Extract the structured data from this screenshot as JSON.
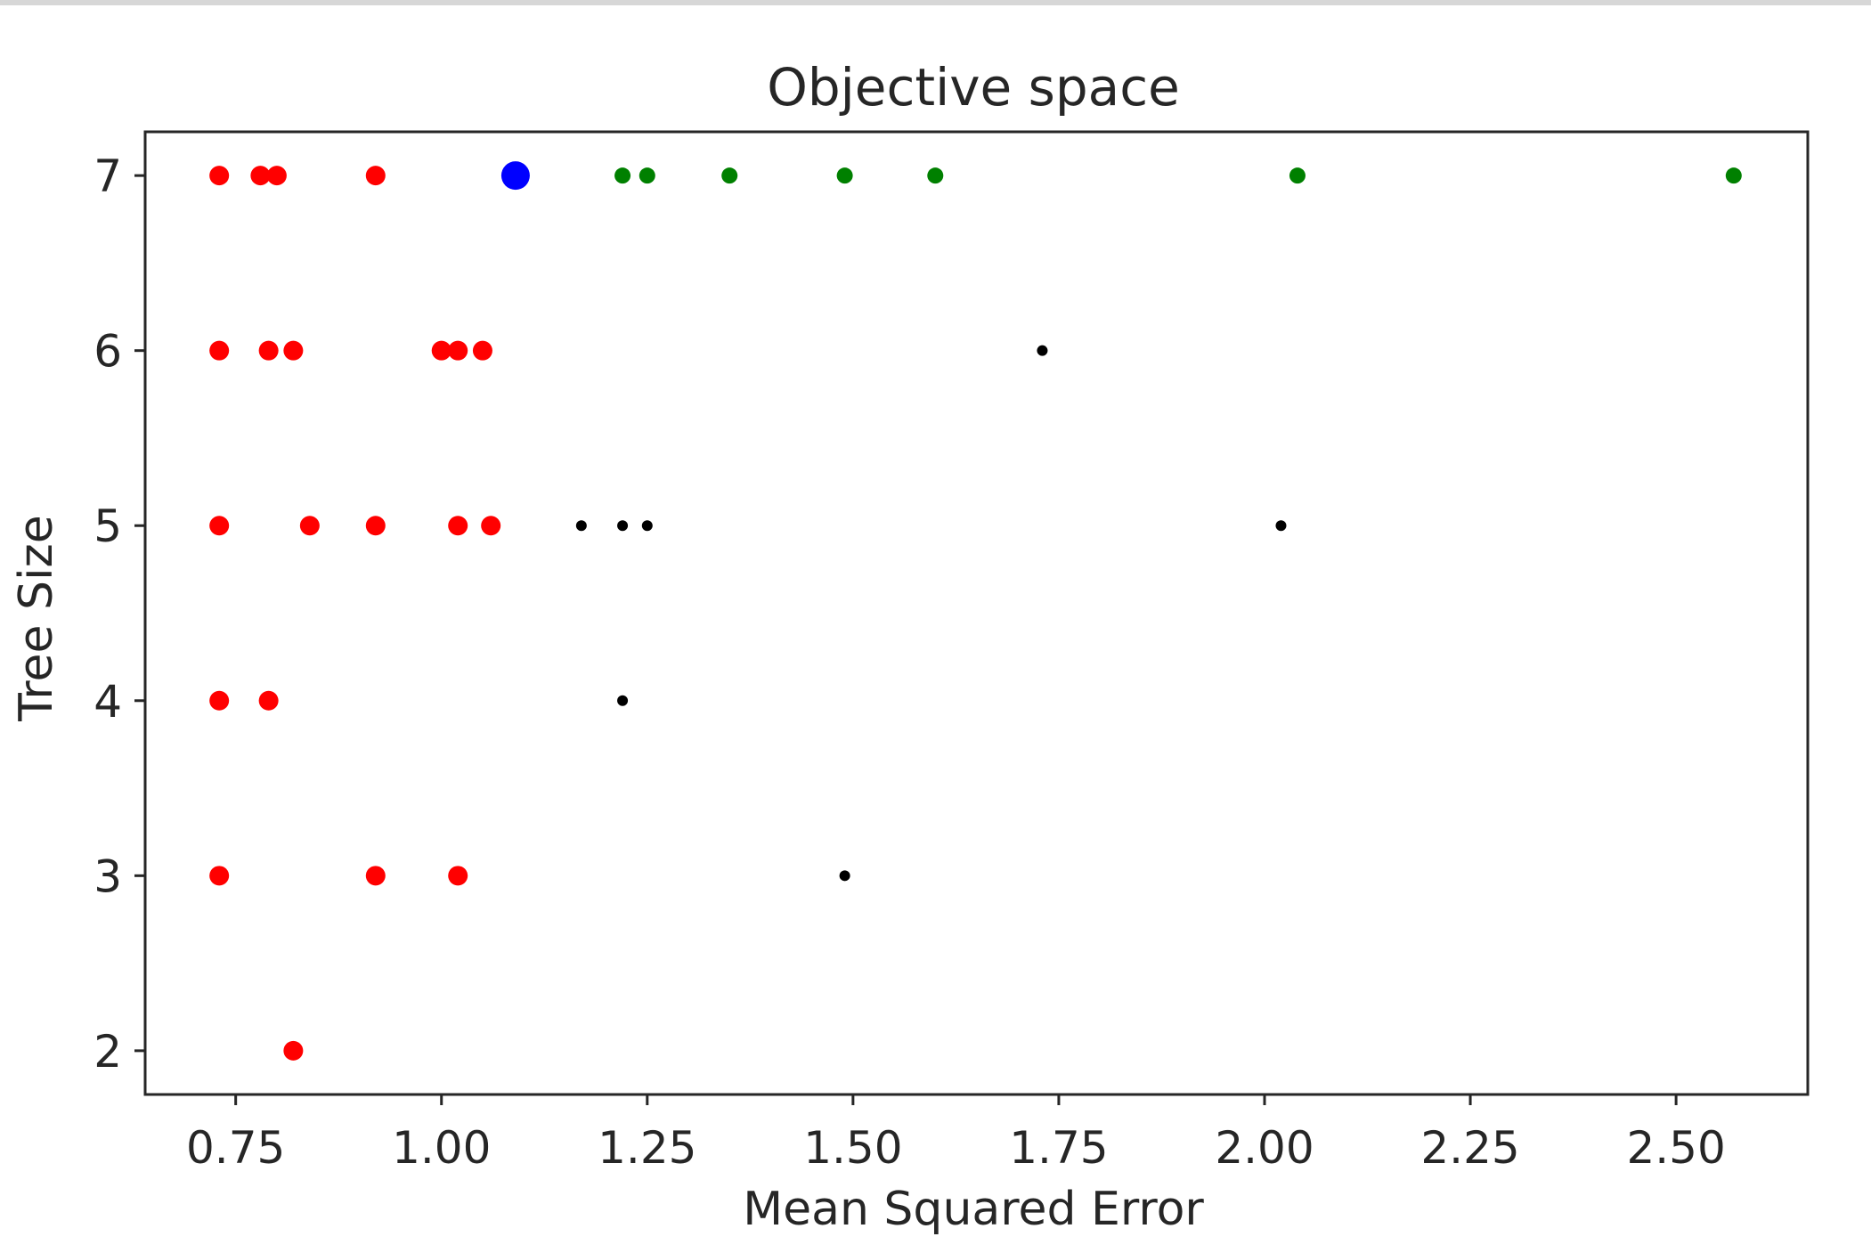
{
  "chart_data": {
    "type": "scatter",
    "title": "Objective space",
    "xlabel": "Mean Squared Error",
    "ylabel": "Tree Size",
    "xlim": [
      0.64,
      2.66
    ],
    "ylim": [
      1.75,
      7.25
    ],
    "xticks": [
      "0.75",
      "1.00",
      "1.25",
      "1.50",
      "1.75",
      "2.00",
      "2.25",
      "2.50"
    ],
    "yticks": [
      "2",
      "3",
      "4",
      "5",
      "6",
      "7"
    ],
    "grid": false,
    "legend": "none",
    "colors": {
      "red": "#ff0000",
      "blue": "#0000ff",
      "green": "#008000",
      "black": "#000000"
    },
    "series": [
      {
        "color": "red",
        "points": [
          {
            "x": 0.73,
            "y": 7
          },
          {
            "x": 0.78,
            "y": 7
          },
          {
            "x": 0.8,
            "y": 7
          },
          {
            "x": 0.92,
            "y": 7
          },
          {
            "x": 0.73,
            "y": 6
          },
          {
            "x": 0.79,
            "y": 6
          },
          {
            "x": 0.82,
            "y": 6
          },
          {
            "x": 1.0,
            "y": 6
          },
          {
            "x": 1.02,
            "y": 6
          },
          {
            "x": 1.05,
            "y": 6
          },
          {
            "x": 0.73,
            "y": 5
          },
          {
            "x": 0.84,
            "y": 5
          },
          {
            "x": 0.92,
            "y": 5
          },
          {
            "x": 1.02,
            "y": 5
          },
          {
            "x": 1.06,
            "y": 5
          },
          {
            "x": 0.73,
            "y": 4
          },
          {
            "x": 0.79,
            "y": 4
          },
          {
            "x": 0.73,
            "y": 3
          },
          {
            "x": 0.92,
            "y": 3
          },
          {
            "x": 1.02,
            "y": 3
          },
          {
            "x": 0.82,
            "y": 2
          }
        ]
      },
      {
        "color": "blue",
        "points": [
          {
            "x": 1.09,
            "y": 7
          }
        ]
      },
      {
        "color": "green",
        "points": [
          {
            "x": 1.22,
            "y": 7
          },
          {
            "x": 1.25,
            "y": 7
          },
          {
            "x": 1.35,
            "y": 7
          },
          {
            "x": 1.49,
            "y": 7
          },
          {
            "x": 1.6,
            "y": 7
          },
          {
            "x": 2.04,
            "y": 7
          },
          {
            "x": 2.57,
            "y": 7
          }
        ]
      },
      {
        "color": "black",
        "points": [
          {
            "x": 1.73,
            "y": 6
          },
          {
            "x": 1.17,
            "y": 5
          },
          {
            "x": 1.22,
            "y": 5
          },
          {
            "x": 1.25,
            "y": 5
          },
          {
            "x": 2.02,
            "y": 5
          },
          {
            "x": 1.22,
            "y": 4
          },
          {
            "x": 1.49,
            "y": 3
          }
        ]
      }
    ]
  }
}
